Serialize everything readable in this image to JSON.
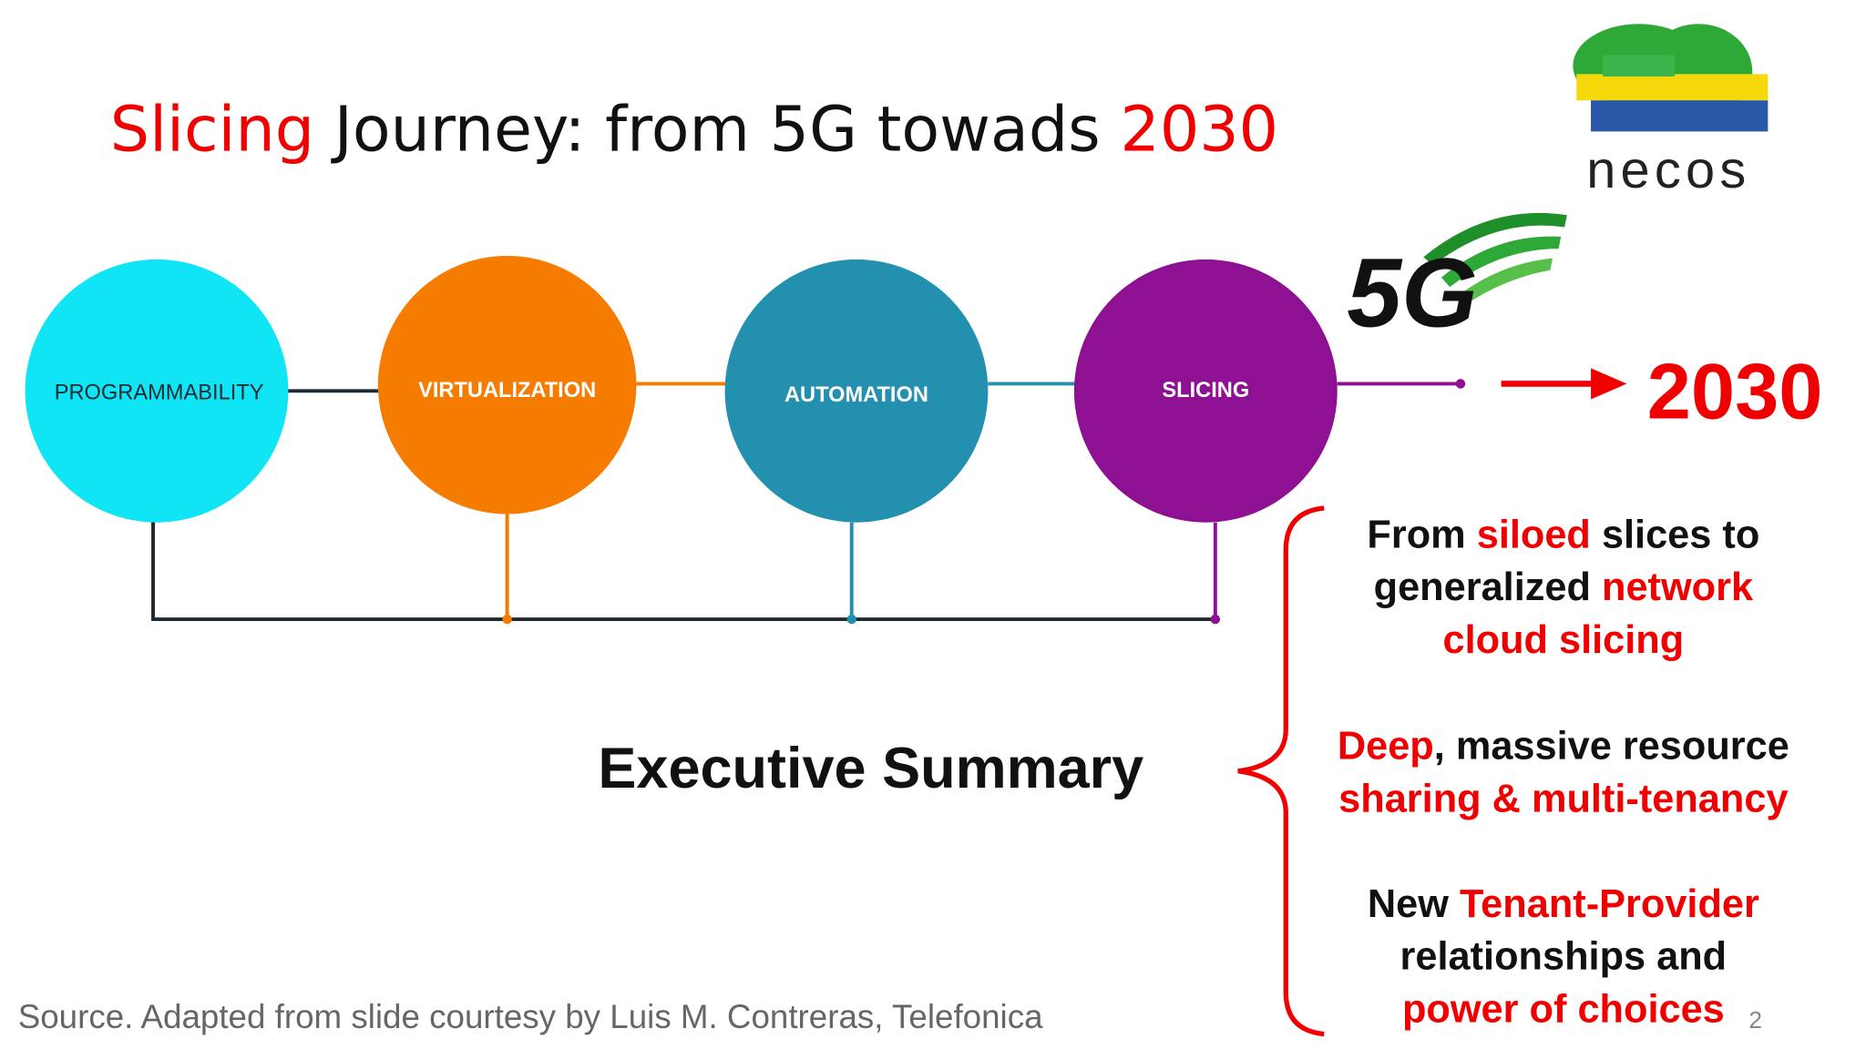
{
  "title": {
    "part1": "Slicing",
    "part2": " Journey: from 5G towads ",
    "part3": "2030"
  },
  "logo": {
    "text": "necos"
  },
  "nodes": [
    {
      "label": "PROGRAMMABILITY"
    },
    {
      "label": "VIRTUALIZATION"
    },
    {
      "label": "AUTOMATION"
    },
    {
      "label": "SLICING"
    }
  ],
  "badge": "5G",
  "target": "2030",
  "summary": "Executive Summary",
  "bullets": [
    {
      "lines": [
        [
          "From ",
          "siloed",
          " slices to"
        ],
        [
          "generalized ",
          "network"
        ],
        [
          "cloud slicing"
        ]
      ]
    },
    {
      "lines": [
        [
          "Deep",
          ", massive resource"
        ],
        [
          "sharing & multi-tenancy"
        ]
      ]
    },
    {
      "lines": [
        [
          "New ",
          "Tenant-Provider"
        ],
        [
          "relationships and"
        ],
        [
          "power of choices"
        ]
      ]
    }
  ],
  "source": "Source. Adapted from slide courtesy by Luis M. Contreras, Telefonica",
  "page_number": "2"
}
